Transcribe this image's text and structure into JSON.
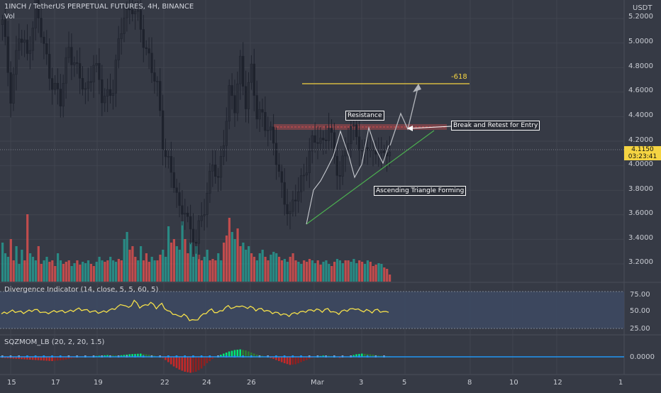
{
  "header": {
    "symbol_title": "1INCH / TetherUS PERPETUAL FUTURES, 4H, BINANCE",
    "volume_label": "Vol"
  },
  "price_axis": {
    "currency": "USDT",
    "ticks": [
      "5.2000",
      "5.0000",
      "4.8000",
      "4.6000",
      "4.4000",
      "4.2000",
      "4.0000",
      "3.8000",
      "3.6000",
      "3.4000",
      "3.2000"
    ],
    "last_price": "4.1150",
    "countdown": "03:23:41"
  },
  "annotations": {
    "fib_label": "-618",
    "resistance": "Resistance",
    "break_retest": "Break and Retest for Entry",
    "triangle": "Ascending Triangle Forming"
  },
  "divergence": {
    "label": "Divergence Indicator (14, close, 5, 5, 60, 5)",
    "ticks": [
      "75.00",
      "50.00",
      "25.00"
    ]
  },
  "sqzmom": {
    "label": "SQZMOM_LB (20, 2, 20, 1.5)",
    "tick": "0.0000"
  },
  "time_axis": {
    "ticks": [
      "15",
      "17",
      "19",
      "22",
      "24",
      "26",
      "Mar",
      "3",
      "5",
      "8",
      "10",
      "12",
      "1"
    ]
  },
  "colors": {
    "background": "#363a45",
    "up_candle": "#1e222d",
    "down_candle": "#1e222d",
    "volume_up": "#26a69a",
    "volume_down": "#ef5350",
    "fib_line": "#f5d442",
    "trendline": "#4caf50",
    "resistance_zone": "#ef5350",
    "oscillator": "#f5e04a",
    "momentum_up": "#4caf50",
    "momentum_down": "#b71c1c",
    "zero_line": "#2196f3"
  },
  "chart_data": {
    "type": "candlestick",
    "title": "1INCH / TetherUS PERPETUAL FUTURES, 4H, BINANCE",
    "ylim": [
      3.1,
      5.3
    ],
    "x_ticks": [
      "15",
      "17",
      "19",
      "22",
      "24",
      "26",
      "Mar",
      "3",
      "5",
      "8",
      "10",
      "12",
      "1"
    ],
    "y_ticks": [
      5.2,
      5.0,
      4.8,
      4.6,
      4.4,
      4.2,
      4.0,
      3.8,
      3.6,
      3.4,
      3.2
    ],
    "last_price": 4.115,
    "fib_level": {
      "label": "-618",
      "price": 4.66
    },
    "resistance_price": 4.29,
    "trendline": {
      "from_bar": 104,
      "from_price": 3.5,
      "to_bar": 140,
      "to_price": 3.99
    },
    "projection": [
      [
        140,
        4.05
      ],
      [
        145,
        4.42
      ],
      [
        148,
        4.28
      ],
      [
        155,
        4.65
      ]
    ],
    "price_path": [
      [
        0,
        5.15
      ],
      [
        3,
        4.6
      ],
      [
        6,
        5.05
      ],
      [
        9,
        4.9
      ],
      [
        12,
        5.3
      ],
      [
        15,
        4.95
      ],
      [
        18,
        4.7
      ],
      [
        21,
        4.5
      ],
      [
        24,
        5.0
      ],
      [
        27,
        4.75
      ],
      [
        30,
        4.6
      ],
      [
        33,
        4.85
      ],
      [
        36,
        4.55
      ],
      [
        40,
        4.65
      ],
      [
        44,
        5.25
      ],
      [
        47,
        5.3
      ],
      [
        50,
        5.1
      ],
      [
        53,
        4.9
      ],
      [
        56,
        4.6
      ],
      [
        58,
        4.2
      ],
      [
        60,
        4.05
      ],
      [
        62,
        3.85
      ],
      [
        64,
        3.6
      ],
      [
        66,
        3.7
      ],
      [
        68,
        3.45
      ],
      [
        70,
        3.35
      ],
      [
        72,
        3.6
      ],
      [
        74,
        3.8
      ],
      [
        76,
        4.0
      ],
      [
        78,
        3.85
      ],
      [
        80,
        4.25
      ],
      [
        82,
        4.6
      ],
      [
        84,
        4.45
      ],
      [
        86,
        4.85
      ],
      [
        88,
        4.55
      ],
      [
        90,
        4.75
      ],
      [
        92,
        4.4
      ],
      [
        94,
        4.45
      ],
      [
        96,
        4.3
      ],
      [
        98,
        4.15
      ],
      [
        100,
        3.95
      ],
      [
        102,
        3.75
      ],
      [
        104,
        3.55
      ],
      [
        106,
        3.75
      ],
      [
        108,
        3.9
      ],
      [
        110,
        4.0
      ],
      [
        112,
        4.15
      ],
      [
        114,
        4.25
      ],
      [
        116,
        4.2
      ],
      [
        118,
        4.3
      ],
      [
        120,
        4.05
      ],
      [
        122,
        3.95
      ],
      [
        124,
        4.15
      ],
      [
        126,
        4.25
      ],
      [
        128,
        4.3
      ],
      [
        130,
        4.1
      ],
      [
        132,
        4.15
      ],
      [
        134,
        4.05
      ],
      [
        136,
        4.2
      ],
      [
        138,
        4.05
      ],
      [
        140,
        4.115
      ]
    ],
    "volume": [
      0.55,
      0.4,
      0.35,
      0.6,
      0.3,
      0.5,
      0.25,
      0.45,
      0.3,
      0.95,
      0.4,
      0.35,
      0.3,
      0.5,
      0.25,
      0.3,
      0.35,
      0.28,
      0.3,
      0.22,
      0.4,
      0.3,
      0.25,
      0.28,
      0.3,
      0.22,
      0.26,
      0.3,
      0.24,
      0.28,
      0.26,
      0.3,
      0.25,
      0.22,
      0.28,
      0.35,
      0.3,
      0.28,
      0.3,
      0.35,
      0.3,
      0.28,
      0.32,
      0.3,
      0.6,
      0.7,
      0.45,
      0.5,
      0.35,
      0.3,
      0.5,
      0.3,
      0.4,
      0.28,
      0.35,
      0.3,
      0.3,
      0.38,
      0.45,
      0.35,
      0.78,
      0.55,
      0.6,
      0.5,
      0.45,
      0.85,
      0.6,
      0.4,
      0.55,
      0.35,
      0.5,
      0.38,
      0.3,
      0.35,
      0.45,
      0.3,
      0.32,
      0.3,
      0.4,
      0.3,
      0.55,
      0.65,
      0.9,
      0.7,
      0.6,
      0.75,
      0.5,
      0.55,
      0.45,
      0.5,
      0.4,
      0.35,
      0.3,
      0.4,
      0.45,
      0.35,
      0.3,
      0.38,
      0.42,
      0.4,
      0.35,
      0.3,
      0.32,
      0.28,
      0.35,
      0.4,
      0.3,
      0.28,
      0.25,
      0.3,
      0.28,
      0.32,
      0.3,
      0.26,
      0.3,
      0.24,
      0.28,
      0.3,
      0.25,
      0.22,
      0.28,
      0.32,
      0.3,
      0.26,
      0.3,
      0.3,
      0.28,
      0.32,
      0.26,
      0.3,
      0.28,
      0.25,
      0.3,
      0.28,
      0.22,
      0.24,
      0.26,
      0.25,
      0.2,
      0.18,
      0.1
    ],
    "divergence_path": [
      [
        0,
        46
      ],
      [
        4,
        50
      ],
      [
        8,
        48
      ],
      [
        12,
        52
      ],
      [
        16,
        47
      ],
      [
        20,
        50
      ],
      [
        24,
        49
      ],
      [
        28,
        53
      ],
      [
        32,
        50
      ],
      [
        36,
        48
      ],
      [
        40,
        52
      ],
      [
        44,
        60
      ],
      [
        46,
        54
      ],
      [
        48,
        65
      ],
      [
        50,
        56
      ],
      [
        52,
        58
      ],
      [
        54,
        62
      ],
      [
        56,
        55
      ],
      [
        58,
        60
      ],
      [
        60,
        50
      ],
      [
        62,
        47
      ],
      [
        64,
        42
      ],
      [
        66,
        45
      ],
      [
        68,
        38
      ],
      [
        70,
        36
      ],
      [
        72,
        42
      ],
      [
        74,
        48
      ],
      [
        76,
        52
      ],
      [
        78,
        47
      ],
      [
        80,
        52
      ],
      [
        82,
        57
      ],
      [
        84,
        54
      ],
      [
        86,
        58
      ],
      [
        88,
        55
      ],
      [
        90,
        56
      ],
      [
        92,
        52
      ],
      [
        94,
        53
      ],
      [
        96,
        50
      ],
      [
        98,
        48
      ],
      [
        100,
        47
      ],
      [
        102,
        45
      ],
      [
        104,
        44
      ],
      [
        106,
        47
      ],
      [
        108,
        48
      ],
      [
        110,
        50
      ],
      [
        112,
        51
      ],
      [
        114,
        52
      ],
      [
        116,
        50
      ],
      [
        118,
        53
      ],
      [
        120,
        48
      ],
      [
        122,
        47
      ],
      [
        124,
        51
      ],
      [
        126,
        52
      ],
      [
        128,
        54
      ],
      [
        130,
        50
      ],
      [
        132,
        51
      ],
      [
        134,
        49
      ],
      [
        136,
        52
      ],
      [
        138,
        48
      ],
      [
        140,
        50
      ]
    ],
    "momentum_path": [
      [
        0,
        -0.05
      ],
      [
        6,
        -0.1
      ],
      [
        12,
        -0.15
      ],
      [
        18,
        -0.2
      ],
      [
        22,
        -0.15
      ],
      [
        26,
        -0.05
      ],
      [
        30,
        -0.02
      ],
      [
        34,
        0.04
      ],
      [
        38,
        0.08
      ],
      [
        42,
        0.06
      ],
      [
        46,
        0.12
      ],
      [
        50,
        0.15
      ],
      [
        54,
        0.08
      ],
      [
        56,
        0.02
      ],
      [
        58,
        -0.05
      ],
      [
        60,
        -0.25
      ],
      [
        62,
        -0.45
      ],
      [
        64,
        -0.6
      ],
      [
        66,
        -0.7
      ],
      [
        68,
        -0.75
      ],
      [
        70,
        -0.7
      ],
      [
        72,
        -0.55
      ],
      [
        74,
        -0.3
      ],
      [
        76,
        -0.1
      ],
      [
        78,
        0.05
      ],
      [
        80,
        0.15
      ],
      [
        82,
        0.25
      ],
      [
        84,
        0.32
      ],
      [
        86,
        0.35
      ],
      [
        88,
        0.3
      ],
      [
        90,
        0.2
      ],
      [
        92,
        0.1
      ],
      [
        94,
        0.05
      ],
      [
        96,
        -0.02
      ],
      [
        98,
        -0.1
      ],
      [
        100,
        -0.2
      ],
      [
        102,
        -0.3
      ],
      [
        104,
        -0.38
      ],
      [
        106,
        -0.35
      ],
      [
        108,
        -0.25
      ],
      [
        110,
        -0.15
      ],
      [
        112,
        -0.05
      ],
      [
        114,
        0.02
      ],
      [
        116,
        0.06
      ],
      [
        118,
        0.05
      ],
      [
        120,
        0.02
      ],
      [
        122,
        -0.05
      ],
      [
        124,
        -0.03
      ],
      [
        126,
        0.05
      ],
      [
        128,
        0.12
      ],
      [
        130,
        0.15
      ],
      [
        132,
        0.13
      ],
      [
        134,
        0.1
      ],
      [
        136,
        0.06
      ],
      [
        138,
        0.04
      ],
      [
        140,
        0.03
      ]
    ]
  }
}
